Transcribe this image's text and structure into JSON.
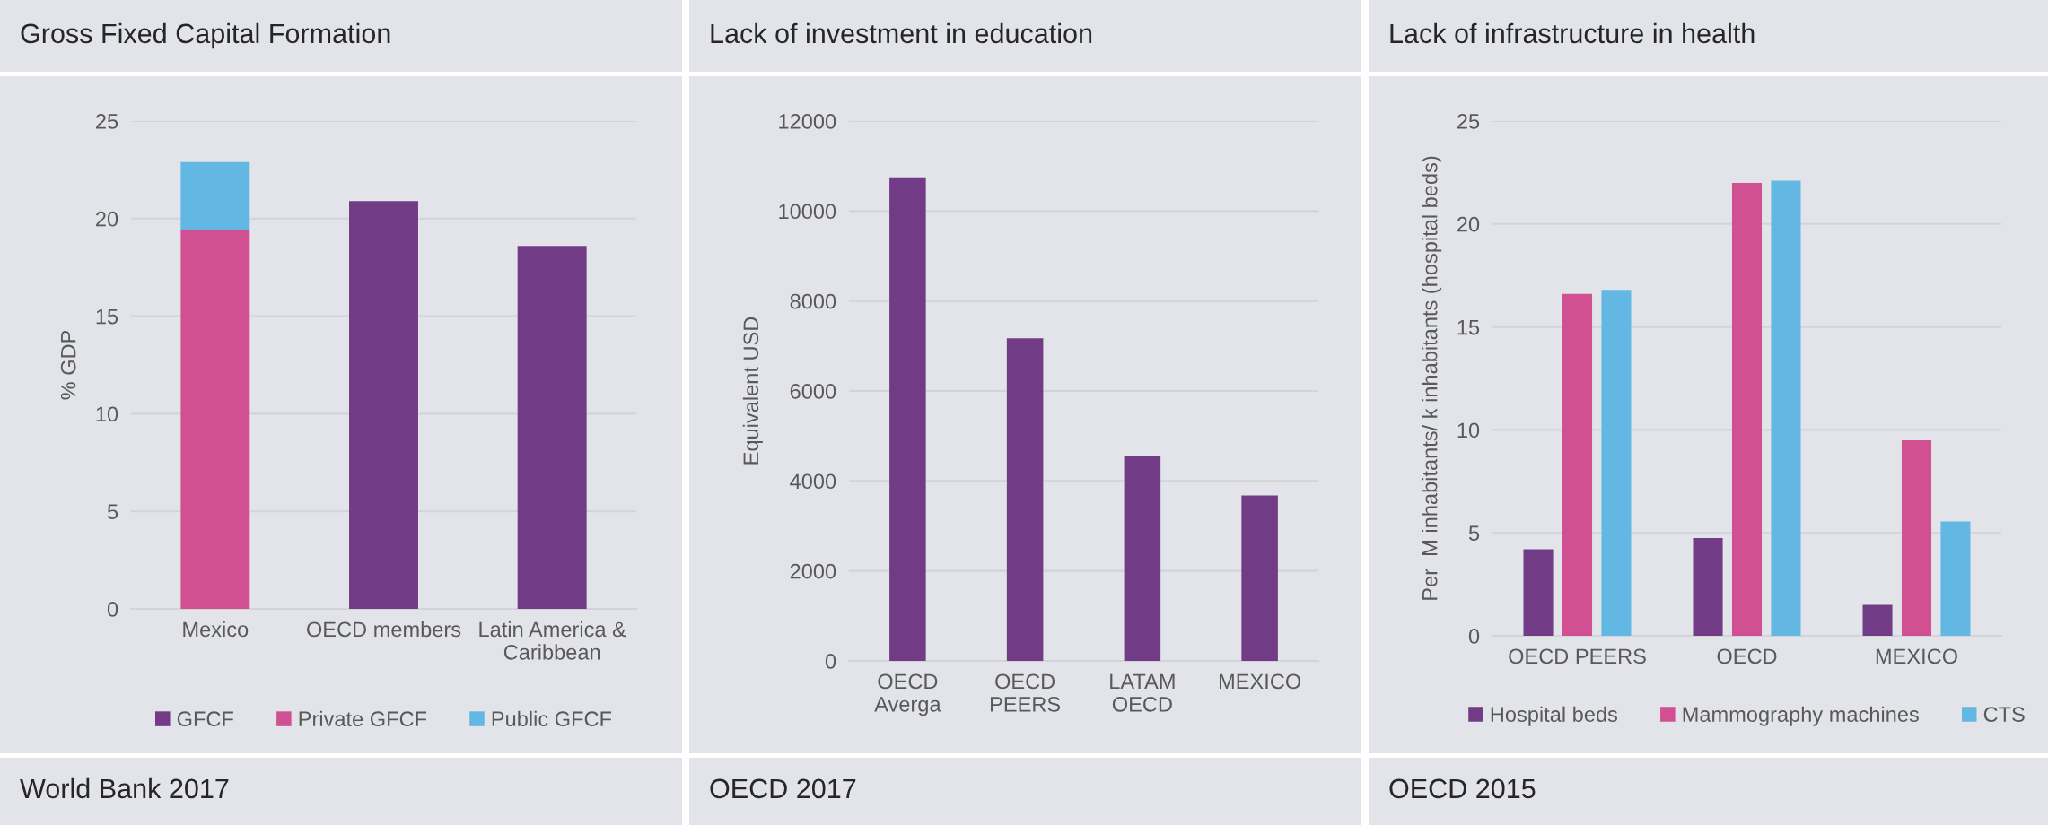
{
  "chart_data": [
    {
      "type": "bar",
      "title": "Gross Fixed Capital Formation",
      "ylabel": "% GDP",
      "categories": [
        "Mexico",
        "OECD members",
        "Latin America &\nCaribbean"
      ],
      "stacked": true,
      "series": [
        {
          "name": "GFCF",
          "color": "#723b86",
          "values": [
            null,
            20.9,
            18.6
          ]
        },
        {
          "name": "Private GFCF",
          "color": "#d15092",
          "values": [
            19.4,
            null,
            null
          ]
        },
        {
          "name": "Public GFCF",
          "color": "#63b8e3",
          "values": [
            3.5,
            null,
            null
          ]
        }
      ],
      "ylim": [
        0,
        25
      ],
      "yticks": [
        0,
        5,
        10,
        15,
        20,
        25
      ],
      "grid": "y",
      "legend": "bottom",
      "annotations": [
        "World Bank 2017"
      ]
    },
    {
      "type": "bar",
      "title": "Lack of investment in education",
      "ylabel": "Equivalent USD",
      "categories": [
        "OECD\nAverga",
        "OECD\nPEERS",
        "LATAM\nOECD",
        "MEXICO"
      ],
      "series": [
        {
          "color": "#723b86",
          "values": [
            10750,
            7170,
            4560,
            3680
          ]
        }
      ],
      "ylim": [
        0,
        12000
      ],
      "yticks": [
        0,
        2000,
        4000,
        6000,
        8000,
        10000,
        12000
      ],
      "grid": "y",
      "annotations": [
        "OECD 2017"
      ]
    },
    {
      "type": "bar",
      "title": "Lack of infrastructure in health",
      "ylabel": "Per  M inhabitants/ k inhabitants (hospital beds)",
      "categories": [
        "OECD PEERS",
        "OECD",
        "MEXICO"
      ],
      "series": [
        {
          "name": "Hospital beds",
          "color": "#723b86",
          "values": [
            4.2,
            4.75,
            1.5
          ]
        },
        {
          "name": "Mammography machines",
          "color": "#d15092",
          "values": [
            16.6,
            22.0,
            9.5
          ]
        },
        {
          "name": "CTS",
          "color": "#63b8e3",
          "values": [
            16.8,
            22.1,
            5.55
          ]
        }
      ],
      "ylim": [
        0,
        25
      ],
      "yticks": [
        0,
        5,
        10,
        15,
        20,
        25
      ],
      "grid": "y",
      "legend": "bottom",
      "annotations": [
        "OECD 2015"
      ]
    }
  ]
}
